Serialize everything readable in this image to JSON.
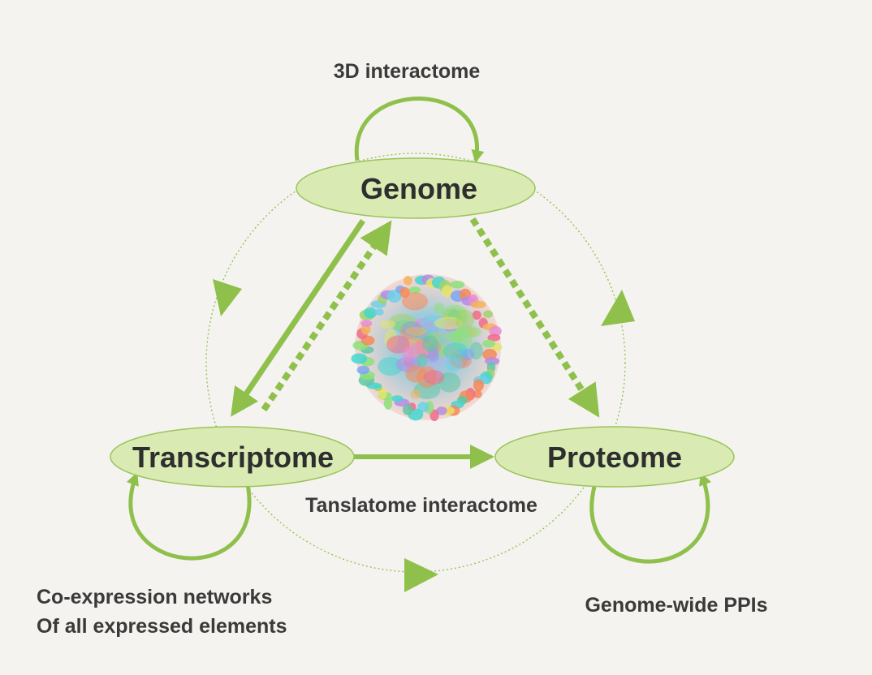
{
  "accent_color": "#8fc04c",
  "node_fill": "#d9ebb3",
  "nodes": {
    "genome": "Genome",
    "transcriptome": "Transcriptome",
    "proteome": "Proteome"
  },
  "captions": {
    "top": "3D interactome",
    "middle": "Tanslatome interactome",
    "bottom_left_line1": "Co-expression networks",
    "bottom_left_line2": "Of all expressed elements",
    "bottom_right": "Genome-wide PPIs"
  },
  "center_image": "network-cluster-icon"
}
